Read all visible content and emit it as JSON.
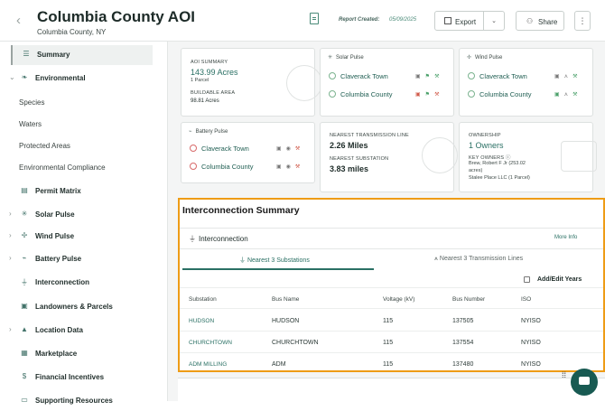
{
  "header": {
    "title": "Columbia County AOI",
    "subtitle": "Columbia County, NY",
    "report_created_label": "Report Created:",
    "report_created_date": "05/09/2025",
    "export_label": "Export",
    "share_label": "Share"
  },
  "sidebar": {
    "items": [
      {
        "label": "Summary"
      },
      {
        "label": "Environmental"
      },
      {
        "label": "Species"
      },
      {
        "label": "Waters"
      },
      {
        "label": "Protected Areas"
      },
      {
        "label": "Environmental Compliance"
      },
      {
        "label": "Permit Matrix"
      },
      {
        "label": "Solar Pulse"
      },
      {
        "label": "Wind Pulse"
      },
      {
        "label": "Battery Pulse"
      },
      {
        "label": "Interconnection"
      },
      {
        "label": "Landowners & Parcels"
      },
      {
        "label": "Location Data"
      },
      {
        "label": "Marketplace"
      },
      {
        "label": "Financial Incentives"
      },
      {
        "label": "Supporting Resources"
      }
    ]
  },
  "cards": {
    "aoi": {
      "label": "AOI SUMMARY",
      "acres": "143.99 Acres",
      "parcels": "1 Parcel",
      "buildable_label": "BUILDABLE AREA",
      "buildable_value": "98.81 Acres"
    },
    "solar": {
      "title": "Solar Pulse",
      "rows": [
        "Claverack Town",
        "Columbia County"
      ]
    },
    "wind": {
      "title": "Wind Pulse",
      "rows": [
        "Claverack Town",
        "Columbia County"
      ]
    },
    "battery": {
      "title": "Battery Pulse",
      "rows": [
        "Claverack Town",
        "Columbia County"
      ]
    },
    "transmission": {
      "line_label": "NEAREST TRANSMISSION LINE",
      "line_value": "2.26 Miles",
      "sub_label": "NEAREST SUBSTATION",
      "sub_value": "3.83 miles"
    },
    "ownership": {
      "label": "OWNERSHIP",
      "owners": "1 Owners",
      "key_label": "KEY OWNERS",
      "owner1": "Brew, Robert F Jr (253.02",
      "owner1b": "acres)",
      "owner2": "Stalee Place LLC (1 Parcel)"
    }
  },
  "interconnection": {
    "section_title": "Interconnection Summary",
    "title": "Interconnection",
    "more_info": "More Info",
    "tabs": [
      "Nearest 3 Substations",
      "Nearest 3 Transmission Lines"
    ],
    "add_edit_years": "Add/Edit Years",
    "columns": [
      "Substation",
      "Bus Name",
      "Voltage (kV)",
      "Bus Number",
      "ISO"
    ],
    "rows": [
      {
        "substation": "HUDSON",
        "bus_name": "HUDSON",
        "voltage": "115",
        "bus_number": "137505",
        "iso": "NYISO"
      },
      {
        "substation": "CHURCHTOWN",
        "bus_name": "CHURCHTOWN",
        "voltage": "115",
        "bus_number": "137554",
        "iso": "NYISO"
      },
      {
        "substation": "ADM MILLING",
        "bus_name": "ADM",
        "voltage": "115",
        "bus_number": "137480",
        "iso": "NYISO"
      }
    ]
  },
  "colors": {
    "accent": "#2a7064",
    "highlight": "#ee9c16",
    "chat": "#185a52"
  }
}
